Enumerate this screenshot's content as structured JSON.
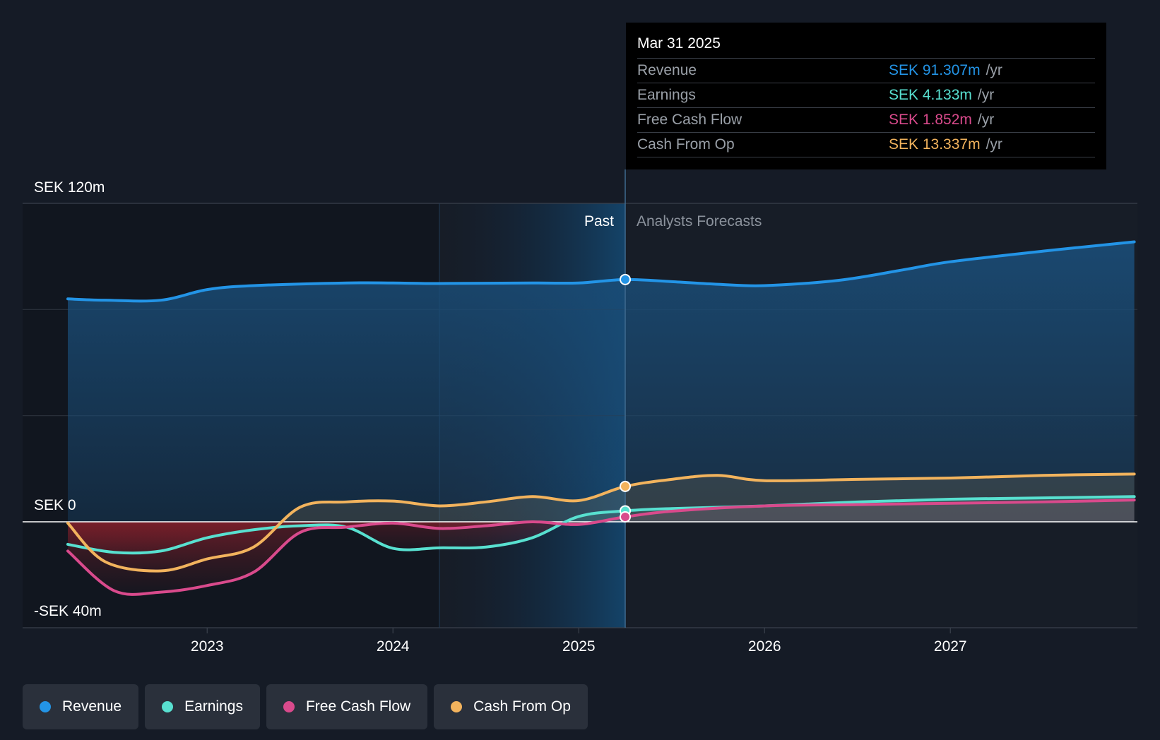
{
  "chart_data": {
    "type": "line",
    "currency": "SEK",
    "y_labels": [
      "SEK 120m",
      "SEK 0",
      "-SEK 40m"
    ],
    "ylim": [
      -40,
      120
    ],
    "x_ticks": [
      "2023",
      "2024",
      "2025",
      "2026",
      "2027"
    ],
    "divider_labels": {
      "past": "Past",
      "forecast": "Analysts Forecasts"
    },
    "divider_date": "2025.25",
    "series": [
      {
        "name": "Revenue",
        "color": "#2394e6",
        "points": [
          [
            2022.25,
            84
          ],
          [
            2022.45,
            83.5
          ],
          [
            2022.75,
            83.5
          ],
          [
            2023.0,
            87.5
          ],
          [
            2023.25,
            89
          ],
          [
            2023.75,
            90
          ],
          [
            2024.0,
            90
          ],
          [
            2024.25,
            89.8
          ],
          [
            2024.75,
            90
          ],
          [
            2025.0,
            90
          ],
          [
            2025.25,
            91.307
          ],
          [
            2025.5,
            90.5
          ],
          [
            2025.75,
            89.5
          ],
          [
            2026.0,
            89
          ],
          [
            2026.4,
            91
          ],
          [
            2026.75,
            95
          ],
          [
            2027.0,
            98
          ],
          [
            2027.5,
            102
          ],
          [
            2027.99,
            105.5
          ]
        ]
      },
      {
        "name": "Earnings",
        "color": "#58e0d0",
        "points": [
          [
            2022.25,
            -8.5
          ],
          [
            2022.5,
            -11.5
          ],
          [
            2022.75,
            -11
          ],
          [
            2023.0,
            -6
          ],
          [
            2023.25,
            -3
          ],
          [
            2023.5,
            -1.5
          ],
          [
            2023.75,
            -2
          ],
          [
            2024.0,
            -10
          ],
          [
            2024.25,
            -9.8
          ],
          [
            2024.5,
            -9.5
          ],
          [
            2024.75,
            -6
          ],
          [
            2025.0,
            2
          ],
          [
            2025.25,
            4.133
          ],
          [
            2025.5,
            5
          ],
          [
            2026.0,
            6
          ],
          [
            2026.5,
            7.5
          ],
          [
            2027.0,
            8.5
          ],
          [
            2027.5,
            9
          ],
          [
            2027.99,
            9.5
          ]
        ]
      },
      {
        "name": "Free Cash Flow",
        "color": "#d94a8c",
        "points": [
          [
            2022.25,
            -11
          ],
          [
            2022.5,
            -26
          ],
          [
            2022.75,
            -26.5
          ],
          [
            2023.0,
            -24
          ],
          [
            2023.25,
            -19
          ],
          [
            2023.5,
            -4
          ],
          [
            2023.75,
            -2
          ],
          [
            2024.0,
            -0.5
          ],
          [
            2024.25,
            -2.5
          ],
          [
            2024.5,
            -1.5
          ],
          [
            2024.75,
            0
          ],
          [
            2025.0,
            -1
          ],
          [
            2025.25,
            1.852
          ],
          [
            2025.5,
            4
          ],
          [
            2026.0,
            6
          ],
          [
            2026.5,
            6.5
          ],
          [
            2027.0,
            7
          ],
          [
            2027.5,
            7.5
          ],
          [
            2027.99,
            8.2
          ]
        ]
      },
      {
        "name": "Cash From Op",
        "color": "#f2b35d",
        "points": [
          [
            2022.25,
            -0.5
          ],
          [
            2022.45,
            -15
          ],
          [
            2022.75,
            -18.5
          ],
          [
            2023.0,
            -14
          ],
          [
            2023.25,
            -9.5
          ],
          [
            2023.5,
            5.5
          ],
          [
            2023.75,
            7.5
          ],
          [
            2024.0,
            7.8
          ],
          [
            2024.25,
            6
          ],
          [
            2024.5,
            7.5
          ],
          [
            2024.75,
            9.5
          ],
          [
            2025.0,
            8
          ],
          [
            2025.25,
            13.337
          ],
          [
            2025.5,
            16
          ],
          [
            2025.75,
            17.5
          ],
          [
            2026.0,
            15.5
          ],
          [
            2026.5,
            16
          ],
          [
            2027.0,
            16.5
          ],
          [
            2027.5,
            17.5
          ],
          [
            2027.99,
            18
          ]
        ]
      }
    ]
  },
  "tooltip": {
    "date": "Mar 31 2025",
    "unit": "/yr",
    "rows": [
      {
        "label": "Revenue",
        "value": "SEK 91.307m",
        "color": "#2394e6"
      },
      {
        "label": "Earnings",
        "value": "SEK 4.133m",
        "color": "#58e0d0"
      },
      {
        "label": "Free Cash Flow",
        "value": "SEK 1.852m",
        "color": "#d94a8c"
      },
      {
        "label": "Cash From Op",
        "value": "SEK 13.337m",
        "color": "#f2b35d"
      }
    ]
  },
  "legend": [
    {
      "label": "Revenue",
      "color": "#2394e6"
    },
    {
      "label": "Earnings",
      "color": "#58e0d0"
    },
    {
      "label": "Free Cash Flow",
      "color": "#d94a8c"
    },
    {
      "label": "Cash From Op",
      "color": "#f2b35d"
    }
  ]
}
